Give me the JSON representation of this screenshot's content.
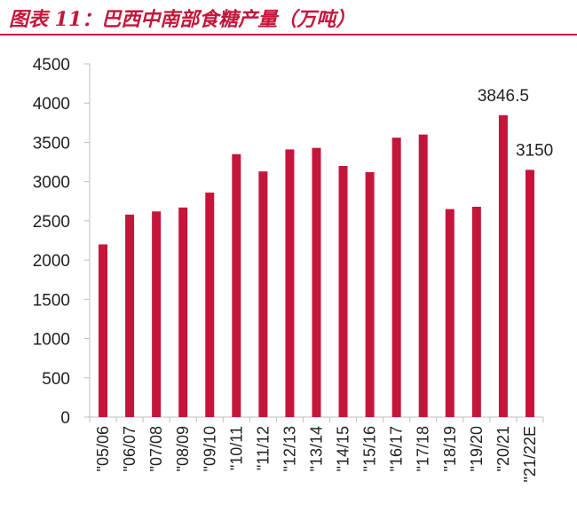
{
  "header": {
    "title": "图表 11：巴西中南部食糖产量（万吨）"
  },
  "colors": {
    "accent": "#c4163b",
    "bar": "#c4163b",
    "axis": "#bfbfbf"
  },
  "chart_data": {
    "type": "bar",
    "title": "图表 11：巴西中南部食糖产量（万吨）",
    "xlabel": "",
    "ylabel": "",
    "ylim": [
      0,
      4500
    ],
    "yticks": [
      0,
      500,
      1000,
      1500,
      2000,
      2500,
      3000,
      3500,
      4000,
      4500
    ],
    "grid": false,
    "legend": "none",
    "categories": [
      "\"05/06",
      "\"06/07",
      "\"07/08",
      "\"08/09",
      "\"09/10",
      "\"10/11",
      "\"11/12",
      "\"12/13",
      "\"13/14",
      "\"14/15",
      "\"15/16",
      "\"16/17",
      "\"17/18",
      "\"18/19",
      "\"19/20",
      "\"20/21",
      "\"21/22E"
    ],
    "values": [
      2200,
      2580,
      2620,
      2670,
      2860,
      3350,
      3130,
      3410,
      3430,
      3200,
      3120,
      3560,
      3600,
      2650,
      2680,
      3846.5,
      3150
    ],
    "data_labels": [
      {
        "category": "\"20/21",
        "text": "3846.5"
      },
      {
        "category": "\"21/22E",
        "text": "3150"
      }
    ]
  }
}
